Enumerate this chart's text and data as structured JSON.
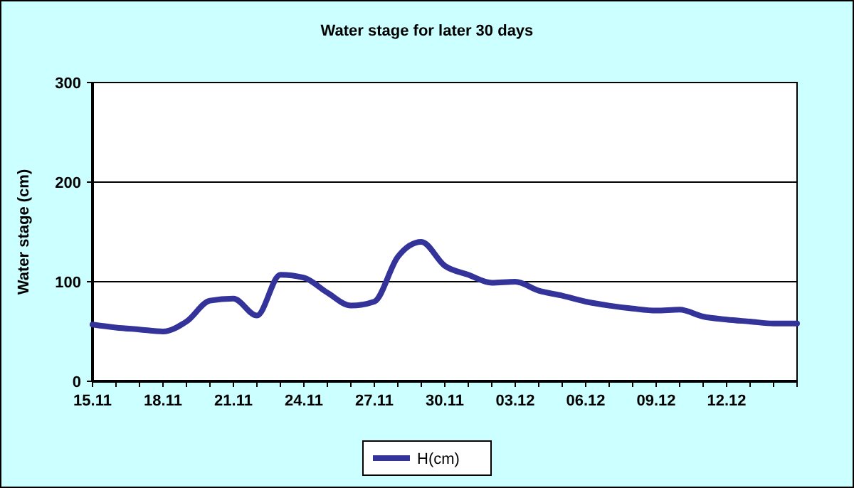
{
  "chart_data": {
    "type": "line",
    "title": "Water stage for later 30 days",
    "ylabel": "Water stage (cm)",
    "x": [
      "--11-15",
      "--11-16",
      "--11-17",
      "--11-18",
      "--11-19",
      "--11-20",
      "--11-21",
      "--11-22",
      "--11-23",
      "--11-24",
      "--11-25",
      "--11-26",
      "--11-27",
      "--11-28",
      "--11-29",
      "--11-30",
      "--12-01",
      "--12-02",
      "--12-03",
      "--12-04",
      "--12-05",
      "--12-06",
      "--12-07",
      "--12-08",
      "--12-09",
      "--12-10",
      "--12-11",
      "--12-12",
      "--12-13",
      "--12-14",
      "--12-15"
    ],
    "series": [
      {
        "name": "H(cm)",
        "color": "#333399",
        "values": [
          57,
          54,
          52,
          50,
          60,
          81,
          83,
          66,
          107,
          104,
          89,
          76,
          80,
          125,
          140,
          116,
          107,
          99,
          100,
          91,
          86,
          80,
          76,
          73,
          71,
          72,
          65,
          62,
          60,
          58,
          58
        ]
      }
    ],
    "xlim": [
      "--11-15",
      "--12-15"
    ],
    "xticks": [
      {
        "value": "--11-15",
        "label": "15.11"
      },
      {
        "value": "--11-16",
        "label": null
      },
      {
        "value": "--11-17",
        "label": null
      },
      {
        "value": "--11-18",
        "label": "18.11"
      },
      {
        "value": "--11-19",
        "label": null
      },
      {
        "value": "--11-20",
        "label": null
      },
      {
        "value": "--11-21",
        "label": "21.11"
      },
      {
        "value": "--11-22",
        "label": null
      },
      {
        "value": "--11-23",
        "label": null
      },
      {
        "value": "--11-24",
        "label": "24.11"
      },
      {
        "value": "--11-25",
        "label": null
      },
      {
        "value": "--11-26",
        "label": null
      },
      {
        "value": "--11-27",
        "label": "27.11"
      },
      {
        "value": "--11-28",
        "label": null
      },
      {
        "value": "--11-29",
        "label": null
      },
      {
        "value": "--11-30",
        "label": "30.11"
      },
      {
        "value": "--12-01",
        "label": null
      },
      {
        "value": "--12-02",
        "label": null
      },
      {
        "value": "--12-03",
        "label": "03.12"
      },
      {
        "value": "--12-04",
        "label": null
      },
      {
        "value": "--12-05",
        "label": null
      },
      {
        "value": "--12-06",
        "label": "06.12"
      },
      {
        "value": "--12-07",
        "label": null
      },
      {
        "value": "--12-08",
        "label": null
      },
      {
        "value": "--12-09",
        "label": "09.12"
      },
      {
        "value": "--12-10",
        "label": null
      },
      {
        "value": "--12-11",
        "label": null
      },
      {
        "value": "--12-12",
        "label": "12.12"
      },
      {
        "value": "--12-13",
        "label": null
      },
      {
        "value": "--12-14",
        "label": null
      },
      {
        "value": "--12-15",
        "label": null
      }
    ],
    "ylim": [
      0,
      300
    ],
    "yticks": [
      0,
      100,
      200,
      300
    ],
    "grid": "y",
    "legend": "bottom",
    "marker": "none",
    "line_style": "solid"
  }
}
